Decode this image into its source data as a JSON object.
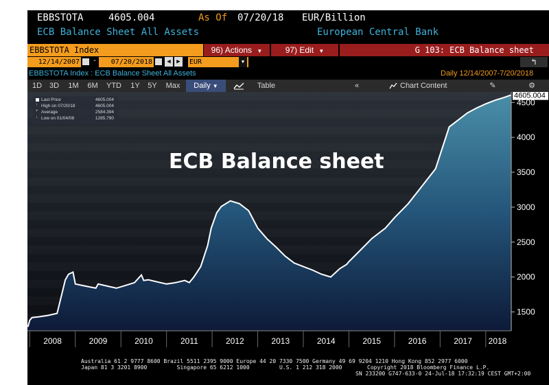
{
  "header": {
    "ticker": "EBBSTOTA",
    "last_value": "4605.004",
    "as_of_label": "As Of",
    "as_of_date": "07/20/18",
    "unit": "EUR/Billion",
    "description": "ECB Balance Sheet All Assets",
    "source": "European Central Bank"
  },
  "command_bar": {
    "security": "EBBSTOTA Index",
    "actions": "96) Actions",
    "edit": "97) Edit",
    "page": "G 103: ECB Balance sheet"
  },
  "date_bar": {
    "start": "12/14/2007",
    "end": "07/20/2018",
    "currency": "EUR",
    "back_icon": "undo-arrow-icon"
  },
  "subtitle_bar": {
    "left": "EBBSTOTA Index : ECB Balance Sheet All Assets",
    "right": "Daily  12/14/2007-7/20/2018"
  },
  "toolbar": {
    "ranges": [
      "1D",
      "3D",
      "1M",
      "6M",
      "YTD",
      "1Y",
      "5Y",
      "Max"
    ],
    "frequency": "Daily",
    "table_label": "Table",
    "chart_content": "Chart Content",
    "icons": [
      "line-chart-icon",
      "double-chevron-left-icon",
      "chart-content-icon",
      "edit-icon",
      "gear-icon"
    ]
  },
  "legend": {
    "items": [
      {
        "label": "Last Price",
        "value": "4605.004"
      },
      {
        "label": "High on 07/20/18",
        "value": "4605.004"
      },
      {
        "label": "Average",
        "value": "2584.394"
      },
      {
        "label": "Low on 01/04/08",
        "value": "1285.790"
      }
    ]
  },
  "overlay_title": "ECB Balance sheet",
  "colors": {
    "orange": "#f39c1e",
    "red": "#9a1d1e",
    "cyan_text": "#3fb2d9",
    "area_top": "#4a8ea8",
    "area_bottom": "#0d1a38",
    "line": "#ffffff"
  },
  "chart_data": {
    "type": "area",
    "title": "ECB Balance sheet",
    "xlabel": "",
    "ylabel": "",
    "xlim": [
      2007.95,
      2018.56
    ],
    "ylim": [
      1230,
      4650
    ],
    "yticks": [
      1500,
      2000,
      2500,
      3000,
      3500,
      4000,
      4500
    ],
    "xticks": [
      "2008",
      "2009",
      "2010",
      "2011",
      "2012",
      "2013",
      "2014",
      "2015",
      "2016",
      "2017",
      "2018"
    ],
    "last_value_label": "4605.004",
    "grid": false,
    "legend": "top-left",
    "series": [
      {
        "name": "Last Price",
        "x": [
          2007.96,
          2008.0,
          2008.05,
          2008.2,
          2008.4,
          2008.6,
          2008.72,
          2008.78,
          2008.85,
          2008.95,
          2009.0,
          2009.15,
          2009.3,
          2009.45,
          2009.5,
          2009.7,
          2009.9,
          2010.1,
          2010.3,
          2010.45,
          2010.5,
          2010.6,
          2010.8,
          2011.0,
          2011.2,
          2011.4,
          2011.5,
          2011.6,
          2011.75,
          2011.9,
          2011.98,
          2012.1,
          2012.2,
          2012.4,
          2012.6,
          2012.8,
          2013.0,
          2013.2,
          2013.4,
          2013.6,
          2013.8,
          2014.0,
          2014.2,
          2014.4,
          2014.6,
          2014.8,
          2014.95,
          2015.0,
          2015.2,
          2015.5,
          2015.8,
          2016.0,
          2016.3,
          2016.6,
          2016.9,
          2017.0,
          2017.2,
          2017.4,
          2017.6,
          2017.8,
          2018.0,
          2018.2,
          2018.4,
          2018.55
        ],
        "values": [
          1286,
          1380,
          1420,
          1430,
          1450,
          1480,
          1800,
          1960,
          2040,
          2070,
          1900,
          1880,
          1860,
          1840,
          1900,
          1870,
          1840,
          1880,
          1920,
          2030,
          1950,
          1960,
          1930,
          1900,
          1920,
          1950,
          1920,
          2000,
          2150,
          2450,
          2700,
          2920,
          3010,
          3090,
          3050,
          2950,
          2700,
          2550,
          2430,
          2300,
          2200,
          2150,
          2100,
          2040,
          2000,
          2120,
          2180,
          2220,
          2350,
          2550,
          2700,
          2850,
          3050,
          3300,
          3550,
          3750,
          4150,
          4250,
          4350,
          4420,
          4480,
          4530,
          4570,
          4605
        ]
      }
    ]
  },
  "footer": {
    "line1": "Australia 61 2 9777 8600 Brazil 5511 2395 9000 Europe 44 20 7330 7500 Germany 49 69 9204 1210 Hong Kong 852 2977 6000",
    "line2a": "Japan 81 3 3201 8900         Singapore 65 6212 1000         U.S. 1 212 318 2000",
    "line2b": "Copyright 2018 Bloomberg Finance L.P.",
    "line3": "SN 233200 G747-633-0 24-Jul-18 17:32:19 CEST GMT+2:00"
  }
}
